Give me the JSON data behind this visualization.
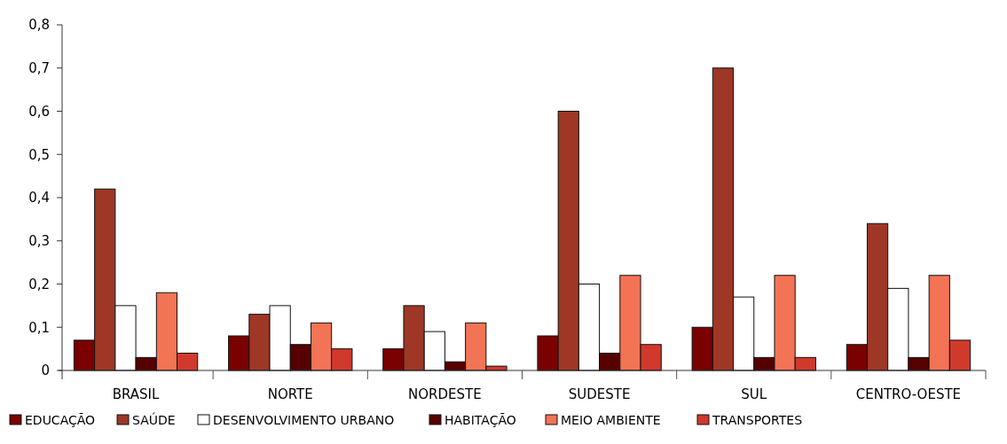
{
  "chart_data": {
    "type": "bar",
    "categories": [
      "BRASIL",
      "NORTE",
      "NORDESTE",
      "SUDESTE",
      "SUL",
      "CENTRO-OESTE"
    ],
    "series": [
      {
        "name": "EDUCAÇÃO",
        "color": "#7b0000",
        "values": [
          0.07,
          0.08,
          0.05,
          0.08,
          0.1,
          0.06
        ]
      },
      {
        "name": "SAÚDE",
        "color": "#9e3726",
        "values": [
          0.42,
          0.13,
          0.15,
          0.6,
          0.7,
          0.34
        ]
      },
      {
        "name": "DESENVOLVIMENTO URBANO",
        "color": "#ffffff",
        "values": [
          0.15,
          0.15,
          0.09,
          0.2,
          0.17,
          0.19
        ]
      },
      {
        "name": "HABITAÇÃO",
        "color": "#560000",
        "values": [
          0.03,
          0.06,
          0.02,
          0.04,
          0.03,
          0.03
        ]
      },
      {
        "name": "MEIO AMBIENTE",
        "color": "#f37355",
        "values": [
          0.18,
          0.11,
          0.11,
          0.22,
          0.22,
          0.22
        ]
      },
      {
        "name": "TRANSPORTES",
        "color": "#d0392b",
        "values": [
          0.04,
          0.05,
          0.01,
          0.06,
          0.03,
          0.07
        ]
      }
    ],
    "ylim": [
      0,
      0.8
    ],
    "yticks": [
      {
        "value": 0,
        "label": "0"
      },
      {
        "value": 0.1,
        "label": "0,1"
      },
      {
        "value": 0.2,
        "label": "0,2"
      },
      {
        "value": 0.3,
        "label": "0,3"
      },
      {
        "value": 0.4,
        "label": "0,4"
      },
      {
        "value": 0.5,
        "label": "0,5"
      },
      {
        "value": 0.6,
        "label": "0,6"
      },
      {
        "value": 0.7,
        "label": "0,7"
      },
      {
        "value": 0.8,
        "label": "0,8"
      }
    ],
    "grid": false,
    "legend": "bottom"
  }
}
